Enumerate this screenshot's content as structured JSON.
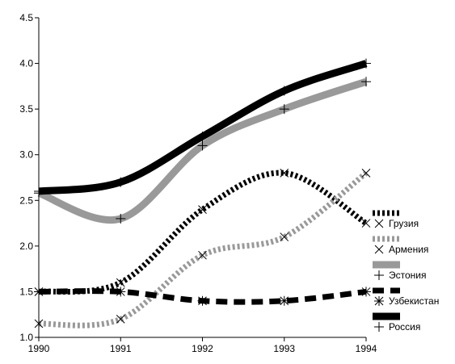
{
  "chart_data": {
    "type": "line",
    "x": [
      1990,
      1991,
      1992,
      1993,
      1994
    ],
    "x_ticks": [
      "1990",
      "1991",
      "1992",
      "1993",
      "1994"
    ],
    "ylim": [
      1.0,
      4.5
    ],
    "y_ticks": [
      "1.0",
      "1.5",
      "2.0",
      "2.5",
      "3.0",
      "3.5",
      "4.0",
      "4.5"
    ],
    "grid": false,
    "legend_position": "right",
    "series": [
      {
        "name": "Грузия",
        "values": [
          1.5,
          1.6,
          2.4,
          2.8,
          2.25
        ],
        "color": "#000000",
        "style": "dotted",
        "marker": "x"
      },
      {
        "name": "Армения",
        "values": [
          1.15,
          1.2,
          1.9,
          2.1,
          2.8
        ],
        "color": "#999999",
        "style": "dotted",
        "marker": "x"
      },
      {
        "name": "Эстония",
        "values": [
          2.58,
          2.3,
          3.1,
          3.5,
          3.8
        ],
        "color": "#999999",
        "style": "solid",
        "marker": "plus"
      },
      {
        "name": "Узбекистан",
        "values": [
          1.5,
          1.5,
          1.4,
          1.4,
          1.5
        ],
        "color": "#000000",
        "style": "dashed",
        "marker": "star"
      },
      {
        "name": "Россия",
        "values": [
          2.6,
          2.7,
          3.2,
          3.7,
          4.0
        ],
        "color": "#000000",
        "style": "solid",
        "marker": "plus"
      }
    ]
  }
}
